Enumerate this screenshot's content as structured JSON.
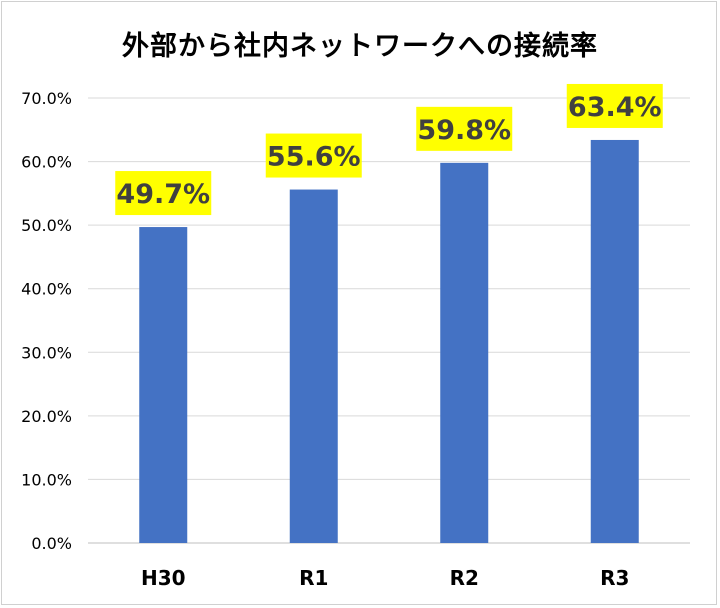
{
  "chart_data": {
    "type": "bar",
    "title": "外部から社内ネットワークへの接続率",
    "categories": [
      "H30",
      "R1",
      "R2",
      "R3"
    ],
    "values": [
      49.7,
      55.6,
      59.8,
      63.4
    ],
    "data_labels": [
      "49.7%",
      "55.6%",
      "59.8%",
      "63.4%"
    ],
    "ylim": [
      0,
      70
    ],
    "yticks": [
      0,
      10,
      20,
      30,
      40,
      50,
      60,
      70
    ],
    "ytick_labels": [
      "0.0%",
      "10.0%",
      "20.0%",
      "30.0%",
      "40.0%",
      "50.0%",
      "60.0%",
      "70.0%"
    ],
    "xlabel": "",
    "ylabel": "",
    "grid": true,
    "legend": "none",
    "colors": {
      "bar": "#4472C4",
      "label_highlight": "#FFFF00",
      "label_text": "#404040",
      "grid": "#D9D9D9"
    }
  }
}
